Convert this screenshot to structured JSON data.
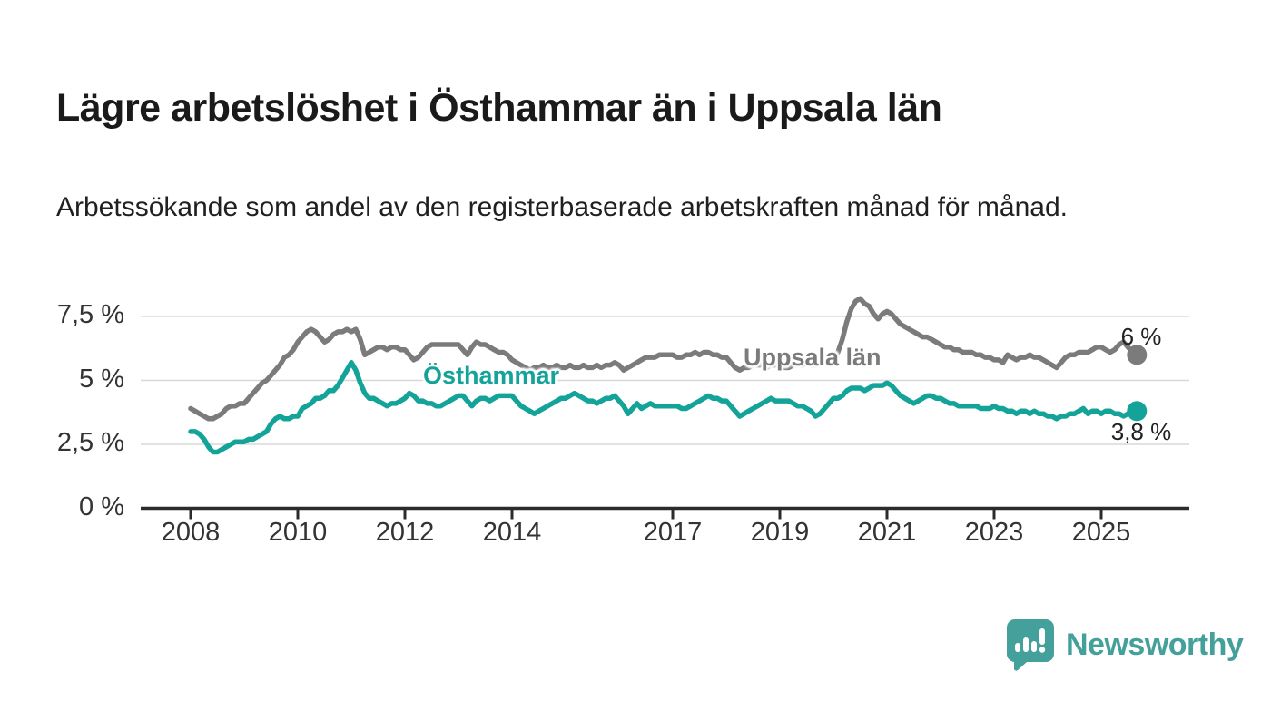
{
  "header": {
    "title": "Lägre arbetslöshet i Östhammar än i Uppsala län",
    "subtitle": "Arbetssökande som andel av den registerbaserade arbetskraften månad för månad."
  },
  "chart_data": {
    "type": "line",
    "title": "Lägre arbetslöshet i Östhammar än i Uppsala län",
    "x_unit": "month",
    "x_start": "2008-01",
    "x_end": "2025-09",
    "ylim": [
      0,
      8.6
    ],
    "grid": "horizontal",
    "colors": {
      "grid": "#d8d8d8",
      "axis": "#2b2b2b",
      "tick_text": "#333333",
      "end_label_text": "#222222"
    },
    "y_ticks": [
      {
        "value": 0,
        "label": "0 %"
      },
      {
        "value": 2.5,
        "label": "2,5 %"
      },
      {
        "value": 5,
        "label": "5 %"
      },
      {
        "value": 7.5,
        "label": "7,5 %"
      }
    ],
    "x_ticks": [
      {
        "year": 2008,
        "label": "2008"
      },
      {
        "year": 2010,
        "label": "2010"
      },
      {
        "year": 2012,
        "label": "2012"
      },
      {
        "year": 2014,
        "label": "2014"
      },
      {
        "year": 2017,
        "label": "2017"
      },
      {
        "year": 2019,
        "label": "2019"
      },
      {
        "year": 2021,
        "label": "2021"
      },
      {
        "year": 2023,
        "label": "2023"
      },
      {
        "year": 2025,
        "label": "2025"
      }
    ],
    "series": [
      {
        "name": "Uppsala län",
        "color": "#7b7b7b",
        "end_label": "6 %",
        "end_value": 6.0,
        "values": [
          3.9,
          3.8,
          3.7,
          3.6,
          3.5,
          3.5,
          3.6,
          3.7,
          3.9,
          4.0,
          4.0,
          4.1,
          4.1,
          4.3,
          4.5,
          4.7,
          4.9,
          5.0,
          5.2,
          5.4,
          5.6,
          5.9,
          6.0,
          6.2,
          6.5,
          6.7,
          6.9,
          7.0,
          6.9,
          6.7,
          6.5,
          6.6,
          6.8,
          6.9,
          6.9,
          7.0,
          6.9,
          7.0,
          6.6,
          6.0,
          6.1,
          6.2,
          6.3,
          6.3,
          6.2,
          6.3,
          6.3,
          6.2,
          6.2,
          6.0,
          5.8,
          5.9,
          6.1,
          6.3,
          6.4,
          6.4,
          6.4,
          6.4,
          6.4,
          6.4,
          6.4,
          6.2,
          6.0,
          6.3,
          6.5,
          6.4,
          6.4,
          6.3,
          6.2,
          6.1,
          6.1,
          6.0,
          5.8,
          5.7,
          5.6,
          5.5,
          5.4,
          5.5,
          5.5,
          5.6,
          5.5,
          5.5,
          5.6,
          5.5,
          5.5,
          5.6,
          5.5,
          5.5,
          5.6,
          5.5,
          5.5,
          5.6,
          5.5,
          5.6,
          5.6,
          5.7,
          5.6,
          5.4,
          5.5,
          5.6,
          5.7,
          5.8,
          5.9,
          5.9,
          5.9,
          6.0,
          6.0,
          6.0,
          6.0,
          5.9,
          5.9,
          6.0,
          6.0,
          6.1,
          6.0,
          6.1,
          6.1,
          6.0,
          6.0,
          5.9,
          5.9,
          5.7,
          5.5,
          5.4,
          5.5,
          5.5,
          5.6,
          5.6,
          5.6,
          5.5,
          5.6,
          5.6,
          5.6,
          5.5,
          5.5,
          5.6,
          5.6,
          5.6,
          5.7,
          5.6,
          5.6,
          5.7,
          5.7,
          5.8,
          5.9,
          6.1,
          6.6,
          7.3,
          7.8,
          8.1,
          8.2,
          8.0,
          7.9,
          7.6,
          7.4,
          7.6,
          7.7,
          7.6,
          7.4,
          7.2,
          7.1,
          7.0,
          6.9,
          6.8,
          6.7,
          6.7,
          6.6,
          6.5,
          6.4,
          6.3,
          6.3,
          6.2,
          6.2,
          6.1,
          6.1,
          6.1,
          6.0,
          6.0,
          5.9,
          5.9,
          5.8,
          5.8,
          5.7,
          6.0,
          5.9,
          5.8,
          5.9,
          5.9,
          6.0,
          5.9,
          5.9,
          5.8,
          5.7,
          5.6,
          5.5,
          5.7,
          5.9,
          6.0,
          6.0,
          6.1,
          6.1,
          6.1,
          6.2,
          6.3,
          6.3,
          6.2,
          6.1,
          6.2,
          6.4,
          6.5,
          6.3,
          6.1,
          6.0
        ]
      },
      {
        "name": "Östhammar",
        "color": "#14a399",
        "end_label": "3,8 %",
        "end_value": 3.8,
        "values": [
          3.0,
          3.0,
          2.9,
          2.7,
          2.4,
          2.2,
          2.2,
          2.3,
          2.4,
          2.5,
          2.6,
          2.6,
          2.6,
          2.7,
          2.7,
          2.8,
          2.9,
          3.0,
          3.3,
          3.5,
          3.6,
          3.5,
          3.5,
          3.6,
          3.6,
          3.9,
          4.0,
          4.1,
          4.3,
          4.3,
          4.4,
          4.6,
          4.6,
          4.8,
          5.1,
          5.4,
          5.7,
          5.4,
          4.9,
          4.5,
          4.3,
          4.3,
          4.2,
          4.1,
          4.0,
          4.1,
          4.1,
          4.2,
          4.3,
          4.5,
          4.4,
          4.2,
          4.2,
          4.1,
          4.1,
          4.0,
          4.0,
          4.1,
          4.2,
          4.3,
          4.4,
          4.4,
          4.2,
          4.0,
          4.2,
          4.3,
          4.3,
          4.2,
          4.3,
          4.4,
          4.4,
          4.4,
          4.4,
          4.2,
          4.0,
          3.9,
          3.8,
          3.7,
          3.8,
          3.9,
          4.0,
          4.1,
          4.2,
          4.3,
          4.3,
          4.4,
          4.5,
          4.4,
          4.3,
          4.2,
          4.2,
          4.1,
          4.2,
          4.3,
          4.3,
          4.4,
          4.2,
          4.0,
          3.7,
          3.9,
          4.1,
          3.9,
          4.0,
          4.1,
          4.0,
          4.0,
          4.0,
          4.0,
          4.0,
          4.0,
          3.9,
          3.9,
          4.0,
          4.1,
          4.2,
          4.3,
          4.4,
          4.3,
          4.3,
          4.2,
          4.2,
          4.0,
          3.8,
          3.6,
          3.7,
          3.8,
          3.9,
          4.0,
          4.1,
          4.2,
          4.3,
          4.2,
          4.2,
          4.2,
          4.2,
          4.1,
          4.0,
          4.0,
          3.9,
          3.8,
          3.6,
          3.7,
          3.9,
          4.1,
          4.3,
          4.3,
          4.4,
          4.6,
          4.7,
          4.7,
          4.7,
          4.6,
          4.7,
          4.8,
          4.8,
          4.8,
          4.9,
          4.8,
          4.6,
          4.4,
          4.3,
          4.2,
          4.1,
          4.2,
          4.3,
          4.4,
          4.4,
          4.3,
          4.3,
          4.2,
          4.1,
          4.1,
          4.0,
          4.0,
          4.0,
          4.0,
          4.0,
          3.9,
          3.9,
          3.9,
          4.0,
          3.9,
          3.9,
          3.8,
          3.8,
          3.7,
          3.8,
          3.8,
          3.7,
          3.8,
          3.7,
          3.7,
          3.6,
          3.6,
          3.5,
          3.6,
          3.6,
          3.7,
          3.7,
          3.8,
          3.9,
          3.7,
          3.8,
          3.8,
          3.7,
          3.8,
          3.8,
          3.7,
          3.7,
          3.6,
          3.7,
          3.7,
          3.8
        ]
      }
    ]
  },
  "footer": {
    "brand": "Newsworthy",
    "logo_icon": "bar-chart-speech-bubble-icon",
    "brand_color": "#44a09a"
  }
}
